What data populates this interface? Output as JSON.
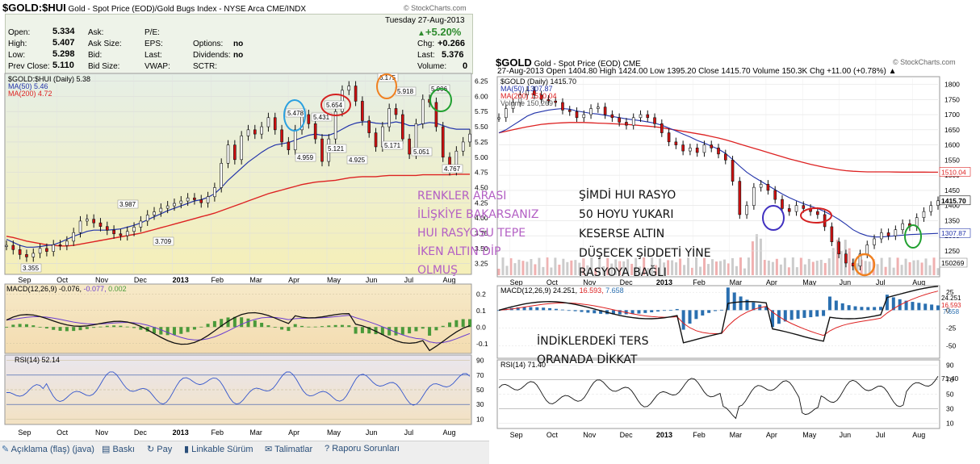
{
  "hui": {
    "symbol": "$GOLD:$HUI",
    "desc": "Gold - Spot Price (EOD)/Gold Bugs Index - NYSE Arca",
    "exchange": "CME/INDX",
    "watermark": "© StockCharts.com",
    "date": "Tuesday 27-Aug-2013",
    "change_pct": "+5.20%",
    "quote": {
      "open_l": "Open:",
      "open": "5.334",
      "high_l": "High:",
      "high": "5.407",
      "low_l": "Low:",
      "low": "5.298",
      "prev_l": "Prev Close:",
      "prev": "5.110",
      "ask_l": "Ask:",
      "asksize_l": "Ask Size:",
      "bid_l": "Bid:",
      "bidsize_l": "Bid Size:",
      "pe_l": "P/E:",
      "eps_l": "EPS:",
      "last_l": "Last:",
      "vwap_l": "VWAP:",
      "options_l": "Options:",
      "options": "no",
      "dividends_l": "Dividends:",
      "dividends": "no",
      "sctr_l": "SCTR:",
      "chg_l": "Chg:",
      "chg": "+0.266",
      "last2_l": "Last:",
      "last": "5.376",
      "vol_l": "Volume:",
      "vol": "0"
    },
    "legend_main": "$GOLD:$HUI (Daily) 5.38",
    "legend_ma50": "MA(50) 5.46",
    "legend_ma200": "MA(200) 4.72",
    "macd_label_a": "MACD(12,26,9) -0.076, ",
    "macd_label_b": "-0.077, ",
    "macd_label_c": "0.002",
    "rsi_label": "RSI(14) 52.14"
  },
  "gold": {
    "symbol": "$GOLD",
    "desc": "Gold - Spot Price (EOD)",
    "exchange": "CME",
    "watermark": "© StockCharts.com",
    "ohlc": "27-Aug-2013   Open 1404.80  High 1424.00  Low 1395.20  Close 1415.70  Volume 150.3K  Chg +11.00 (+0.78%) ▲",
    "legend_main": "$GOLD (Daily) 1415.70",
    "legend_ma50": "MA(50) 1307.87",
    "legend_ma200": "MA(200) 1510.04",
    "legend_vol": "Volume 150,269",
    "macd_label_a": "MACD(12,26,9) 24.251, ",
    "macd_label_b": "16.593, ",
    "macd_label_c": "7.658",
    "rsi_label": "RSI(14) 71.40"
  },
  "notes": {
    "purple": [
      "RENKLER ARASI",
      "İLİŞKİYE BAKARSANIZ",
      "HUI RASYOSU TEPE",
      "İKEN ALTIN DİP",
      "OLMUŞ"
    ],
    "black1": [
      "ŞİMDİ HUI RASYO",
      "50 HOYU YUKARI",
      "KESERSE ALTIN",
      "DÜŞECEK ŞİDDETİ YİNE",
      "RASYOYA BAĞLI"
    ],
    "black2": [
      "İNDİKLERDEKİ TERS",
      "ORANADA DİKKAT"
    ]
  },
  "bottombar": [
    "Açıklama (flaş) (java)",
    "Baskı",
    "Pay",
    "Linkable Sürüm",
    "Talimatlar",
    "Raporu Sorunları"
  ],
  "colors": {
    "ma50": "#2233aa",
    "ma200": "#dd2222",
    "macd_signal": "#6a3dd0",
    "purple_note": "#b35fc4"
  },
  "chart_data": [
    {
      "type": "line",
      "name_id": "hui-ratio",
      "title": "$GOLD:$HUI",
      "x_ticks": [
        "Sep",
        "Oct",
        "Nov",
        "Dec",
        "2013",
        "Feb",
        "Mar",
        "Apr",
        "May",
        "Jun",
        "Jul",
        "Aug"
      ],
      "y_ticks": [
        3.25,
        3.5,
        3.75,
        4.0,
        4.25,
        4.5,
        4.75,
        5.0,
        5.25,
        5.5,
        5.75,
        6.0,
        6.25
      ],
      "ylim": [
        3.1,
        6.35
      ],
      "price": [
        3.55,
        3.48,
        3.4,
        3.36,
        3.42,
        3.5,
        3.45,
        3.56,
        3.55,
        3.62,
        3.76,
        3.95,
        3.98,
        3.92,
        3.86,
        3.8,
        3.74,
        3.71,
        3.78,
        3.85,
        3.95,
        4.05,
        4.1,
        4.16,
        4.2,
        4.24,
        4.28,
        4.33,
        4.3,
        4.25,
        4.35,
        4.5,
        4.9,
        5.2,
        4.96,
        5.35,
        5.45,
        5.38,
        5.5,
        5.65,
        5.45,
        5.25,
        5.12,
        5.45,
        5.7,
        5.55,
        5.3,
        4.93,
        5.3,
        5.75,
        6.1,
        6.17,
        5.92,
        5.6,
        5.4,
        5.17,
        5.5,
        5.8,
        5.7,
        5.3,
        5.05,
        5.55,
        5.95,
        5.9,
        5.5,
        5.0,
        4.78,
        5.1,
        5.25,
        5.38
      ],
      "ma50": [
        3.65,
        3.6,
        3.55,
        3.52,
        3.52,
        3.53,
        3.55,
        3.56,
        3.6,
        3.65,
        3.7,
        3.74,
        3.78,
        3.8,
        3.8,
        3.8,
        3.81,
        3.82,
        3.85,
        3.88,
        3.92,
        3.97,
        4.02,
        4.07,
        4.12,
        4.16,
        4.2,
        4.24,
        4.28,
        4.3,
        4.34,
        4.4,
        4.5,
        4.62,
        4.72,
        4.82,
        4.92,
        5.0,
        5.08,
        5.15,
        5.2,
        5.22,
        5.24,
        5.28,
        5.32,
        5.36,
        5.38,
        5.36,
        5.36,
        5.4,
        5.46,
        5.52,
        5.56,
        5.58,
        5.58,
        5.56,
        5.55,
        5.56,
        5.58,
        5.56,
        5.52,
        5.52,
        5.55,
        5.57,
        5.56,
        5.52,
        5.48,
        5.46,
        5.46,
        5.46
      ],
      "ma200": [
        3.7,
        3.68,
        3.65,
        3.62,
        3.6,
        3.58,
        3.56,
        3.55,
        3.54,
        3.54,
        3.55,
        3.57,
        3.59,
        3.61,
        3.63,
        3.65,
        3.67,
        3.69,
        3.71,
        3.73,
        3.75,
        3.78,
        3.81,
        3.84,
        3.87,
        3.9,
        3.93,
        3.96,
        3.99,
        4.02,
        4.05,
        4.08,
        4.12,
        4.16,
        4.2,
        4.24,
        4.28,
        4.32,
        4.36,
        4.4,
        4.43,
        4.46,
        4.49,
        4.52,
        4.55,
        4.57,
        4.59,
        4.6,
        4.61,
        4.62,
        4.64,
        4.66,
        4.67,
        4.68,
        4.68,
        4.68,
        4.69,
        4.7,
        4.7,
        4.7,
        4.7,
        4.7,
        4.71,
        4.71,
        4.71,
        4.71,
        4.71,
        4.72,
        4.72,
        4.72
      ],
      "annotations": [
        {
          "label": "3.355"
        },
        {
          "label": "3.987"
        },
        {
          "label": "3.709"
        },
        {
          "label": "5.478"
        },
        {
          "label": "4.959"
        },
        {
          "label": "5.654"
        },
        {
          "label": "5.431"
        },
        {
          "label": "5.121"
        },
        {
          "label": "4.925"
        },
        {
          "label": "6.175"
        },
        {
          "label": "5.918"
        },
        {
          "label": "5.171"
        },
        {
          "label": "5.051"
        },
        {
          "label": "5.906"
        },
        {
          "label": "4.767"
        }
      ]
    },
    {
      "type": "line",
      "name_id": "gold-spot",
      "title": "$GOLD",
      "x_ticks": [
        "Sep",
        "Oct",
        "Nov",
        "Dec",
        "2013",
        "Feb",
        "Mar",
        "Apr",
        "May",
        "Jun",
        "Jul",
        "Aug"
      ],
      "y_ticks": [
        1250,
        1300,
        1350,
        1400,
        1450,
        1500,
        1550,
        1600,
        1650,
        1700,
        1750,
        1800
      ],
      "ylim": [
        1170,
        1820
      ],
      "price": [
        1690,
        1720,
        1740,
        1765,
        1780,
        1765,
        1750,
        1745,
        1740,
        1715,
        1710,
        1690,
        1700,
        1720,
        1725,
        1700,
        1690,
        1675,
        1665,
        1690,
        1700,
        1690,
        1670,
        1640,
        1610,
        1600,
        1580,
        1590,
        1575,
        1600,
        1590,
        1570,
        1550,
        1480,
        1370,
        1400,
        1460,
        1470,
        1450,
        1420,
        1390,
        1380,
        1400,
        1390,
        1380,
        1370,
        1330,
        1280,
        1240,
        1210,
        1200,
        1240,
        1270,
        1290,
        1310,
        1300,
        1320,
        1340,
        1330,
        1360,
        1380,
        1400,
        1415.7
      ],
      "ma50": [
        1640,
        1650,
        1665,
        1680,
        1695,
        1705,
        1710,
        1715,
        1718,
        1720,
        1718,
        1712,
        1708,
        1704,
        1702,
        1698,
        1694,
        1690,
        1686,
        1683,
        1680,
        1676,
        1672,
        1665,
        1656,
        1646,
        1636,
        1626,
        1615,
        1606,
        1596,
        1586,
        1572,
        1552,
        1530,
        1510,
        1494,
        1480,
        1466,
        1452,
        1438,
        1426,
        1416,
        1406,
        1398,
        1390,
        1380,
        1368,
        1354,
        1338,
        1320,
        1308,
        1300,
        1296,
        1296,
        1298,
        1300,
        1302,
        1304,
        1305,
        1306,
        1307,
        1307.87
      ],
      "ma200": [
        1640,
        1645,
        1650,
        1655,
        1660,
        1664,
        1668,
        1670,
        1672,
        1673,
        1674,
        1674,
        1674,
        1673,
        1672,
        1671,
        1670,
        1669,
        1668,
        1666,
        1664,
        1662,
        1660,
        1657,
        1653,
        1649,
        1645,
        1641,
        1637,
        1633,
        1628,
        1623,
        1617,
        1610,
        1603,
        1596,
        1589,
        1582,
        1575,
        1568,
        1561,
        1554,
        1548,
        1542,
        1536,
        1531,
        1526,
        1522,
        1518,
        1515,
        1513,
        1512,
        1511,
        1511,
        1511,
        1511,
        1510.5,
        1510.3,
        1510.2,
        1510.1,
        1510.1,
        1510.05,
        1510.04
      ]
    }
  ]
}
